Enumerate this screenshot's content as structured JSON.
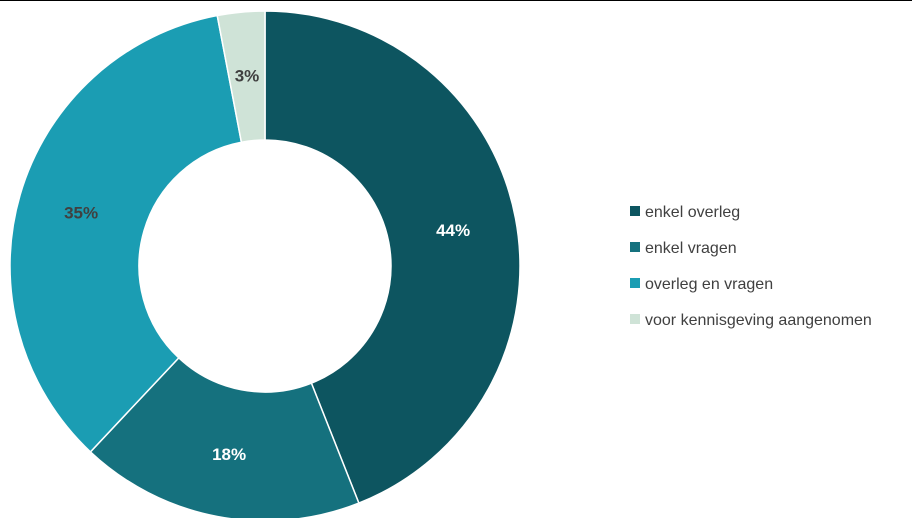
{
  "chart_data": {
    "type": "pie",
    "title": "",
    "categories": [
      "enkel overleg",
      "enkel vragen",
      "overleg en vragen",
      "voor kennisgeving aangenomen"
    ],
    "values": [
      44,
      18,
      35,
      3
    ],
    "labels": [
      "44%",
      "18%",
      "35%",
      "3%"
    ],
    "colors": [
      "#0d5560",
      "#15717e",
      "#1b9db3",
      "#cfe3d7"
    ],
    "label_colors": [
      "#ffffff",
      "#ffffff",
      "#404040",
      "#404040"
    ],
    "donut": true,
    "legend_position": "right"
  }
}
